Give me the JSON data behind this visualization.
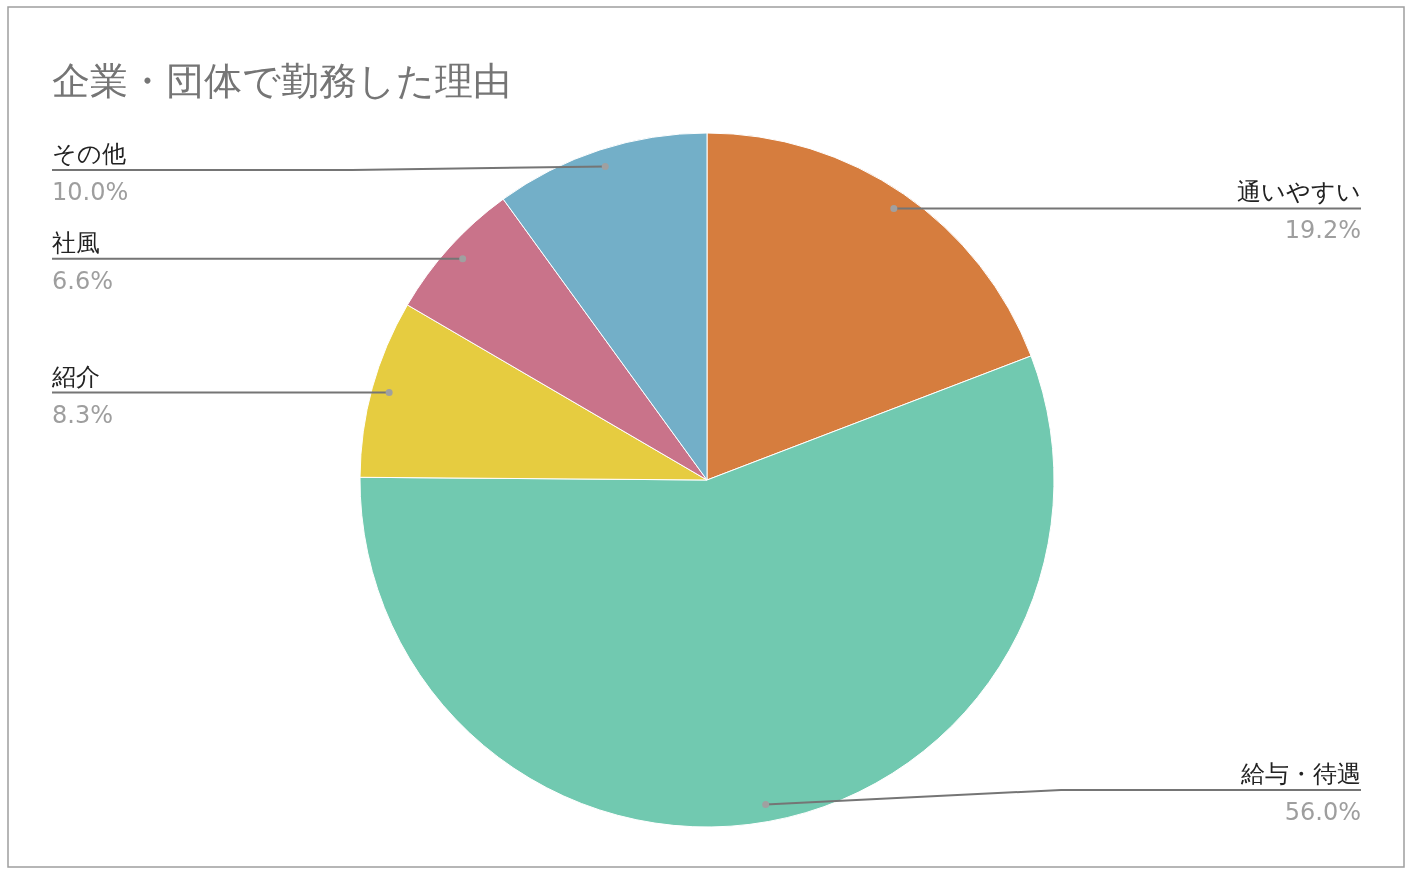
{
  "chart_data": {
    "type": "pie",
    "title": "企業・団体で勤務した理由",
    "categories": [
      "通いやすい",
      "給与・待遇",
      "紹介",
      "社風",
      "その他"
    ],
    "values": [
      19.2,
      56.0,
      8.3,
      6.6,
      10.0
    ],
    "value_labels": [
      "19.2%",
      "56.0%",
      "8.3%",
      "6.6%",
      "10.0%"
    ],
    "colors": [
      "#d67d3e",
      "#71c9b0",
      "#e6cc40",
      "#c9738a",
      "#73afc8"
    ]
  }
}
